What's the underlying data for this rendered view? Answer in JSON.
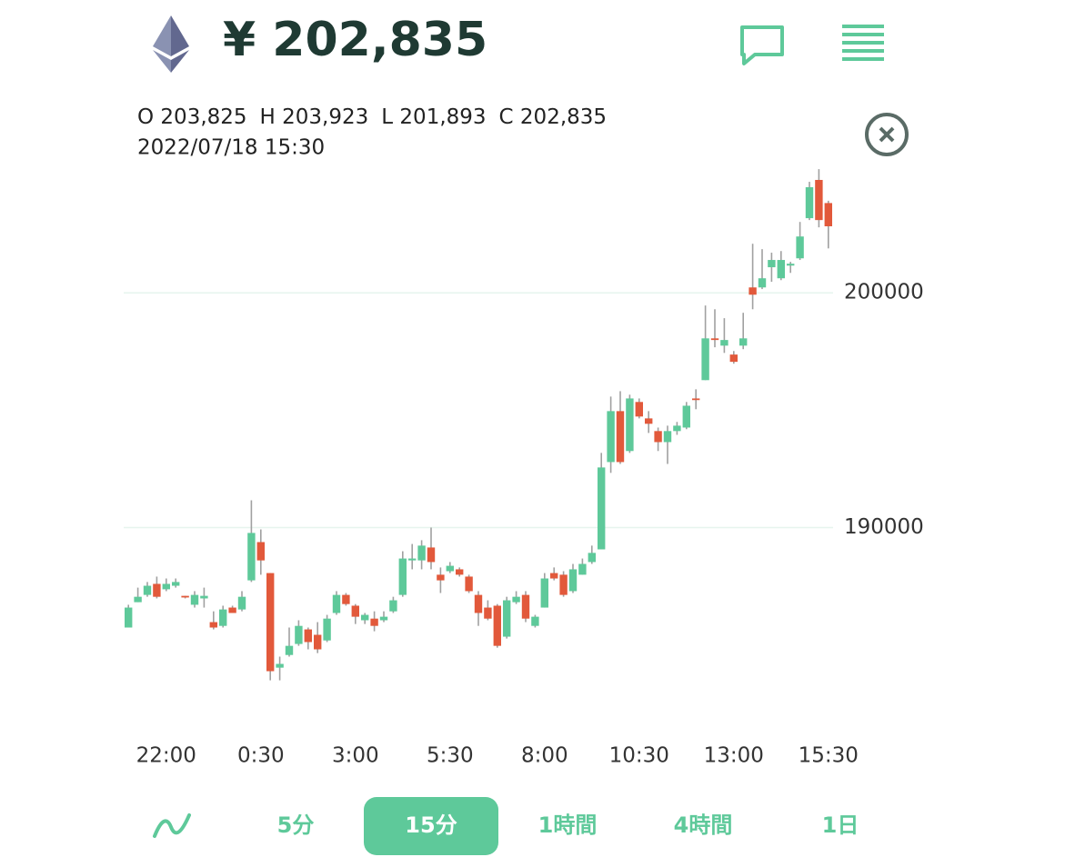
{
  "header": {
    "price": "¥ 202,835"
  },
  "ohlc_info": [
    {
      "label": "O",
      "value": "203,825"
    },
    {
      "label": "H",
      "value": "203,923"
    },
    {
      "label": "L",
      "value": "201,893"
    },
    {
      "label": "C",
      "value": "202,835"
    }
  ],
  "timestamp": "2022/07/18 15:30",
  "tabs": [
    "5分",
    "15分",
    "1時間",
    "4時間",
    "1日"
  ],
  "selected_tab": 1,
  "chart_data": {
    "type": "candlestick",
    "categories": [
      null,
      null,
      null,
      null,
      "22:00",
      null,
      null,
      null,
      null,
      null,
      null,
      null,
      null,
      null,
      "0:30",
      null,
      null,
      null,
      null,
      null,
      null,
      null,
      null,
      null,
      "3:00",
      null,
      null,
      null,
      null,
      null,
      null,
      null,
      null,
      null,
      "5:30",
      null,
      null,
      null,
      null,
      null,
      null,
      null,
      null,
      null,
      "8:00",
      null,
      null,
      null,
      null,
      null,
      null,
      null,
      null,
      null,
      "10:30",
      null,
      null,
      null,
      null,
      null,
      null,
      null,
      null,
      null,
      "13:00",
      null,
      null,
      null,
      null,
      null,
      null,
      null,
      null,
      null,
      "15:30"
    ],
    "open": [
      185740,
      186820,
      187130,
      187600,
      187370,
      187520,
      187090,
      186710,
      186980,
      185970,
      185810,
      186590,
      186510,
      187750,
      189380,
      188060,
      184030,
      184570,
      185040,
      185660,
      185430,
      185190,
      186360,
      187130,
      186670,
      186050,
      186120,
      186050,
      186430,
      187130,
      188600,
      188600,
      189150,
      187990,
      188140,
      188220,
      187910,
      187130,
      186590,
      186670,
      185350,
      186820,
      187130,
      185810,
      186590,
      188060,
      187990,
      187290,
      187990,
      188530,
      189070,
      192790,
      194960,
      193260,
      195350,
      194650,
      194110,
      193640,
      194110,
      194260,
      195500,
      196280,
      198060,
      197750,
      197370,
      197750,
      200230,
      200230,
      201090,
      200620,
      201160,
      201470,
      203180,
      204810,
      203825
    ],
    "high": [
      186710,
      187440,
      187680,
      187910,
      187830,
      187830,
      187090,
      187290,
      187440,
      186430,
      186670,
      186670,
      187290,
      191160,
      189920,
      188060,
      184500,
      185740,
      186050,
      185740,
      185970,
      186280,
      187290,
      187210,
      186740,
      186360,
      186430,
      186430,
      187050,
      188990,
      189300,
      189460,
      190000,
      188300,
      188530,
      188300,
      187990,
      187290,
      186900,
      186740,
      187050,
      187290,
      187290,
      186280,
      188060,
      188300,
      188140,
      188450,
      188680,
      189230,
      193180,
      195580,
      195810,
      195660,
      195500,
      194960,
      194260,
      194340,
      194500,
      195350,
      195890,
      199460,
      199300,
      198920,
      197520,
      199150,
      202090,
      201860,
      201710,
      201780,
      201320,
      203020,
      204730,
      205270,
      203923
    ],
    "low": [
      185740,
      186820,
      187050,
      186980,
      187290,
      187440,
      186980,
      186590,
      186590,
      185660,
      185740,
      186360,
      186430,
      187680,
      187990,
      183490,
      183490,
      184500,
      184960,
      184810,
      184650,
      185120,
      186280,
      186670,
      185890,
      185890,
      185580,
      185970,
      186360,
      187050,
      188220,
      188220,
      188220,
      187210,
      188060,
      187910,
      187210,
      185810,
      186050,
      184880,
      185270,
      186740,
      185970,
      185740,
      186590,
      187750,
      187050,
      187210,
      187990,
      188450,
      189070,
      192330,
      192710,
      193180,
      194650,
      194030,
      193260,
      192710,
      193950,
      194190,
      195040,
      196280,
      197680,
      197440,
      196980,
      197600,
      199300,
      200160,
      200470,
      200540,
      200850,
      201400,
      203100,
      202790,
      201893
    ],
    "close": [
      186590,
      187050,
      187520,
      187050,
      187600,
      187680,
      187020,
      187130,
      187090,
      185740,
      186510,
      186360,
      187050,
      189770,
      188600,
      183880,
      184190,
      184960,
      185810,
      185120,
      184810,
      186120,
      187130,
      186740,
      186200,
      186280,
      185810,
      186200,
      186900,
      188680,
      188680,
      189230,
      188530,
      187750,
      188370,
      187990,
      187290,
      186360,
      186120,
      184960,
      186900,
      187050,
      186120,
      186200,
      187830,
      187830,
      187130,
      188220,
      188450,
      188920,
      192560,
      194960,
      192790,
      195500,
      194730,
      194420,
      193640,
      194110,
      194340,
      195190,
      195430,
      198060,
      197990,
      197990,
      197060,
      198060,
      199920,
      200620,
      201400,
      201400,
      201240,
      202400,
      204500,
      203100,
      202835
    ],
    "up_color": "#5ec99a",
    "down_color": "#e2593b",
    "ylim": [
      181500,
      205700
    ],
    "yticks": [
      190000,
      200000
    ],
    "grid": true
  }
}
